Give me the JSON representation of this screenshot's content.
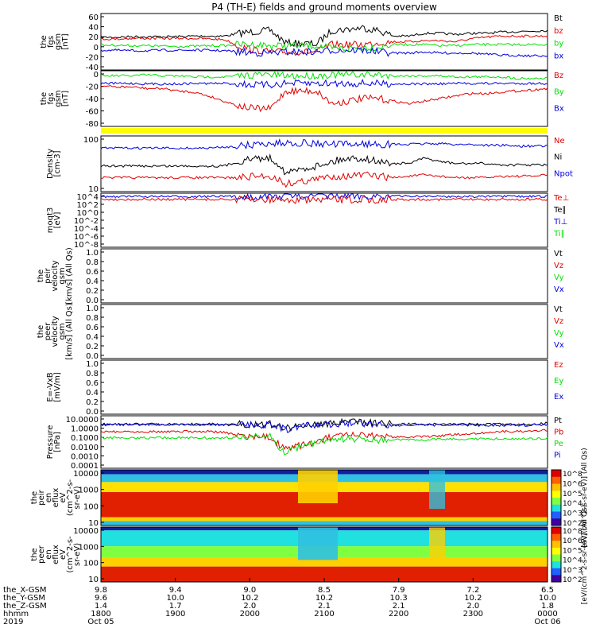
{
  "title": "P4 (TH-E) fields and ground moments overview",
  "colors": {
    "black": "#000000",
    "red": "#e00000",
    "green": "#00e000",
    "blue": "#0000e0",
    "yellow": "#ffff00"
  },
  "chart_data": [
    {
      "id": "fgs",
      "type": "line",
      "ylabel": [
        "the",
        "fgs",
        "gsm",
        "[nT]"
      ],
      "yticks": [
        "60",
        "40",
        "20",
        "0",
        "-20",
        "-40"
      ],
      "ylim": [
        -40,
        60
      ],
      "legend": [
        {
          "text": "Bt",
          "color": "black"
        },
        {
          "text": "bz",
          "color": "red"
        },
        {
          "text": "by",
          "color": "green"
        },
        {
          "text": "bx",
          "color": "blue"
        }
      ],
      "series": [
        {
          "name": "Bt",
          "color": "black",
          "values": [
            18,
            18,
            19,
            19,
            19,
            19,
            20,
            20,
            20,
            25,
            28,
            30,
            8,
            7,
            6,
            30,
            32,
            35,
            30,
            20,
            20,
            25,
            25,
            23,
            25,
            25,
            27,
            28,
            29,
            30
          ]
        },
        {
          "name": "bz",
          "color": "red",
          "values": [
            15,
            15,
            16,
            16,
            16,
            16,
            16,
            15,
            14,
            2,
            -5,
            -8,
            -8,
            -8,
            -8,
            5,
            5,
            5,
            8,
            10,
            10,
            12,
            12,
            10,
            15,
            18,
            20,
            20,
            20,
            20
          ]
        },
        {
          "name": "by",
          "color": "green",
          "values": [
            4,
            4,
            3,
            3,
            2,
            2,
            2,
            3,
            3,
            5,
            5,
            3,
            3,
            3,
            3,
            -2,
            -2,
            0,
            0,
            5,
            5,
            5,
            3,
            3,
            5,
            5,
            5,
            5,
            5,
            5
          ]
        },
        {
          "name": "bx",
          "color": "blue",
          "values": [
            -5,
            -5,
            -6,
            -6,
            -5,
            -5,
            -5,
            -5,
            -6,
            -8,
            -10,
            -10,
            -8,
            -8,
            -8,
            -5,
            -5,
            -5,
            -8,
            -10,
            -10,
            -8,
            -10,
            -10,
            -10,
            -12,
            -14,
            -14,
            -15,
            -15
          ]
        }
      ]
    },
    {
      "id": "fgs_dsl",
      "type": "line",
      "ylabel": [
        "the",
        "fgs",
        "gsm",
        "[nT]"
      ],
      "yticks": [
        "0",
        "-20",
        "-40",
        "-60",
        "-80"
      ],
      "ylim": [
        -90,
        20
      ],
      "legend": [
        {
          "text": "Bz",
          "color": "red"
        },
        {
          "text": "By",
          "color": "green"
        },
        {
          "text": "Bx",
          "color": "blue"
        }
      ],
      "series": [
        {
          "name": "Bz",
          "color": "red",
          "values": [
            -10,
            -12,
            -12,
            -15,
            -15,
            -20,
            -22,
            -30,
            -40,
            -50,
            -55,
            -55,
            -20,
            -20,
            -20,
            -45,
            -40,
            -35,
            -35,
            -40,
            -45,
            -40,
            -35,
            -30,
            -25,
            -25,
            -22,
            -20,
            -18,
            -15
          ]
        },
        {
          "name": "By",
          "color": "green",
          "values": [
            10,
            10,
            10,
            12,
            10,
            10,
            8,
            8,
            8,
            10,
            12,
            12,
            10,
            10,
            10,
            12,
            12,
            12,
            12,
            10,
            10,
            10,
            10,
            8,
            8,
            8,
            8,
            5,
            5,
            5
          ]
        },
        {
          "name": "Bx",
          "color": "blue",
          "values": [
            -5,
            -5,
            -5,
            -6,
            -6,
            -6,
            -5,
            -5,
            -5,
            -6,
            -8,
            -8,
            -5,
            -5,
            -5,
            -5,
            -5,
            -5,
            -5,
            -6,
            -6,
            -6,
            -6,
            -5,
            -5,
            -5,
            -5,
            -5,
            -5,
            -5
          ]
        }
      ]
    },
    {
      "id": "density",
      "type": "line",
      "log": true,
      "ylabel": [
        "Density",
        "[cm-3]"
      ],
      "yticks": [
        "100",
        "10"
      ],
      "ylim": [
        2,
        300
      ],
      "legend": [
        {
          "text": "Ne",
          "color": "red"
        },
        {
          "text": "Ni",
          "color": "black"
        },
        {
          "text": "Npot",
          "color": "blue"
        }
      ],
      "series": [
        {
          "name": "Ne",
          "color": "red",
          "values": [
            7,
            7,
            7,
            7,
            7,
            7,
            7,
            7,
            7,
            7,
            8,
            8,
            4,
            5,
            6,
            8,
            8,
            9,
            8,
            7,
            8,
            9,
            8,
            7,
            7,
            7,
            8,
            8,
            8,
            9
          ]
        },
        {
          "name": "Ni",
          "color": "black",
          "values": [
            20,
            20,
            20,
            20,
            20,
            20,
            20,
            20,
            20,
            30,
            40,
            40,
            10,
            15,
            20,
            30,
            40,
            40,
            30,
            25,
            25,
            40,
            30,
            25,
            25,
            25,
            22,
            22,
            22,
            22
          ]
        },
        {
          "name": "Npot",
          "color": "blue",
          "values": [
            100,
            100,
            100,
            100,
            100,
            100,
            100,
            100,
            110,
            120,
            140,
            150,
            160,
            160,
            150,
            140,
            140,
            150,
            140,
            140,
            140,
            150,
            150,
            140,
            140,
            130,
            130,
            120,
            120,
            120
          ]
        }
      ]
    },
    {
      "id": "temp",
      "type": "line",
      "log": true,
      "ylabel": [
        "moqt3",
        "[eV]"
      ],
      "yticks": [
        "10^4",
        "10^2",
        "10^0",
        "10^-2",
        "10^-4",
        "10^-6",
        "10^-8"
      ],
      "ylim": [
        -9,
        4
      ],
      "legend": [
        {
          "text": "Te⊥",
          "color": "red"
        },
        {
          "text": "Te∥",
          "color": "black"
        },
        {
          "text": "Ti⊥",
          "color": "blue"
        },
        {
          "text": "Ti∥",
          "color": "green"
        }
      ],
      "series": [
        {
          "name": "Ti",
          "color": "blue",
          "values": [
            3.2,
            3.2,
            3.2,
            3.2,
            3.2,
            3.2,
            3.2,
            3.2,
            3.2,
            3.2,
            3.2,
            3.2,
            3.4,
            3.4,
            3.4,
            3.3,
            3.3,
            3.3,
            3.3,
            3.3,
            3.3,
            3.3,
            3.2,
            3.2,
            3.2,
            3.2,
            3.2,
            3.2,
            3.2,
            3.2
          ]
        },
        {
          "name": "Te",
          "color": "red",
          "values": [
            2.5,
            2.5,
            2.5,
            2.5,
            2.5,
            2.5,
            2.5,
            2.5,
            2.5,
            2.5,
            2.5,
            2.5,
            2.3,
            2.3,
            2.3,
            2.4,
            2.4,
            2.4,
            2.4,
            2.5,
            2.5,
            2.5,
            2.5,
            2.5,
            2.5,
            2.5,
            2.5,
            2.5,
            2.5,
            2.5
          ]
        }
      ]
    },
    {
      "id": "peir_vel",
      "type": "line",
      "ylabel": [
        "the",
        "peir",
        "velocity",
        "gsm",
        "[km/s] (All Qs)"
      ],
      "yticks": [
        "1.0",
        "0.8",
        "0.6",
        "0.4",
        "0.2",
        "0.0"
      ],
      "ylim": [
        0,
        1
      ],
      "legend": [
        {
          "text": "Vt",
          "color": "black"
        },
        {
          "text": "Vz",
          "color": "red"
        },
        {
          "text": "Vy",
          "color": "green"
        },
        {
          "text": "Vx",
          "color": "blue"
        }
      ],
      "series": []
    },
    {
      "id": "peer_vel",
      "type": "line",
      "ylabel": [
        "the",
        "peer",
        "velocity",
        "gsm",
        "[km/s] (All Qs)"
      ],
      "yticks": [
        "1.0",
        "0.8",
        "0.6",
        "0.4",
        "0.2",
        "0.0"
      ],
      "ylim": [
        0,
        1
      ],
      "legend": [
        {
          "text": "Vt",
          "color": "black"
        },
        {
          "text": "Vz",
          "color": "red"
        },
        {
          "text": "Vy",
          "color": "green"
        },
        {
          "text": "Vx",
          "color": "blue"
        }
      ],
      "series": []
    },
    {
      "id": "efield",
      "type": "line",
      "ylabel": [
        "E=-VxB",
        "[mV/m]"
      ],
      "yticks": [
        "1.0",
        "0.8",
        "0.6",
        "0.4",
        "0.2",
        "0.0"
      ],
      "ylim": [
        0,
        1
      ],
      "legend": [
        {
          "text": "Ez",
          "color": "red"
        },
        {
          "text": "Ey",
          "color": "green"
        },
        {
          "text": "Ex",
          "color": "blue"
        }
      ],
      "series": []
    },
    {
      "id": "pressure",
      "type": "line",
      "log": true,
      "ylabel": [
        "Pressure",
        "[nPa]"
      ],
      "yticks": [
        "10.0000",
        "1.0000",
        "0.1000",
        "0.0100",
        "0.0010",
        "0.0001"
      ],
      "ylim": [
        -4,
        1
      ],
      "legend": [
        {
          "text": "Pt",
          "color": "black"
        },
        {
          "text": "Pb",
          "color": "red"
        },
        {
          "text": "Pe",
          "color": "green"
        },
        {
          "text": "Pi",
          "color": "blue"
        }
      ],
      "series": [
        {
          "name": "Pt",
          "color": "black",
          "values": [
            0.2,
            0.2,
            0.2,
            0.2,
            0.2,
            0.2,
            0.2,
            0.2,
            0.2,
            0.2,
            0.2,
            0.2,
            -0.2,
            0.1,
            0.2,
            0.3,
            0.4,
            0.4,
            0.3,
            0.2,
            0.2,
            0.2,
            0.2,
            0.2,
            0.2,
            0.2,
            0.2,
            0.2,
            0.2,
            0.3
          ]
        },
        {
          "name": "Pi",
          "color": "blue",
          "values": [
            0.15,
            0.15,
            0.15,
            0.15,
            0.15,
            0.15,
            0.15,
            0.15,
            0.15,
            0.15,
            0.15,
            0.15,
            -0.3,
            0,
            0.1,
            0.2,
            0.3,
            0.3,
            0.2,
            0.1,
            0.1,
            0.1,
            0.1,
            0.1,
            0.1,
            0.1,
            0.1,
            0.1,
            0.1,
            0.2
          ]
        },
        {
          "name": "Pb",
          "color": "red",
          "values": [
            -0.5,
            -0.5,
            -0.5,
            -0.5,
            -0.5,
            -0.5,
            -0.5,
            -0.5,
            -0.6,
            -0.9,
            -1.0,
            -1.1,
            -2.2,
            -1.8,
            -1.5,
            -1.0,
            -0.9,
            -0.9,
            -1.0,
            -1.0,
            -1.0,
            -1.0,
            -0.9,
            -0.8,
            -0.7,
            -0.6,
            -0.5,
            -0.5,
            -0.4,
            -0.4
          ]
        },
        {
          "name": "Pe",
          "color": "green",
          "values": [
            -1.1,
            -1.1,
            -1.1,
            -1.1,
            -1.1,
            -1.1,
            -1.1,
            -1.1,
            -1.1,
            -1.1,
            -1.0,
            -1.0,
            -2.6,
            -1.8,
            -1.6,
            -1.3,
            -1.2,
            -1.2,
            -1.3,
            -1.3,
            -1.3,
            -1.3,
            -1.2,
            -1.2,
            -1.2,
            -1.2,
            -1.2,
            -1.2,
            -1.2,
            -1.1
          ]
        }
      ]
    },
    {
      "id": "peir_spec",
      "type": "heatmap",
      "ylabel": [
        "the",
        "peir",
        "en",
        "eflux",
        "eV",
        "(cm^2-s-",
        "sr-eV)"
      ],
      "yticks": [
        "10000",
        "1000",
        "100",
        "10"
      ],
      "cbar_label": "[eV/(cm^2-s-sr-eV)] (All Qs)",
      "cbar_ticks": [
        "10^8",
        "10^6",
        "10^5",
        "10^4",
        "10^3",
        "10^2"
      ]
    },
    {
      "id": "peer_spec",
      "type": "heatmap",
      "ylabel": [
        "the",
        "peer",
        "en",
        "eflux",
        "eV",
        "(cm^2-s-",
        "sr-eV)"
      ],
      "yticks": [
        "10000",
        "1000",
        "100",
        "10"
      ],
      "cbar_label": "[eV/(cm^2-s-sr-eV)] (All Qs)",
      "cbar_ticks": [
        "10^8",
        "10^6",
        "10^5",
        "10^4",
        "10^3",
        "10^2"
      ]
    }
  ],
  "xaxis": {
    "rows": [
      {
        "label": "the_X-GSM",
        "values": [
          "9.8",
          "9.4",
          "9.0",
          "8.5",
          "7.9",
          "7.2",
          "6.5"
        ]
      },
      {
        "label": "the_Y-GSM",
        "values": [
          "9.6",
          "10.0",
          "10.2",
          "10.2",
          "10.3",
          "10.2",
          "10.0"
        ]
      },
      {
        "label": "the_Z-GSM",
        "values": [
          "1.4",
          "1.7",
          "2.0",
          "2.1",
          "2.1",
          "2.0",
          "1.8"
        ]
      },
      {
        "label": "hhmm",
        "values": [
          "1800",
          "1900",
          "2000",
          "2100",
          "2200",
          "2300",
          "0000"
        ]
      },
      {
        "label": "2019",
        "values": [
          "Oct 05",
          "",
          "",
          "",
          "",
          "",
          "Oct 06"
        ]
      }
    ]
  }
}
